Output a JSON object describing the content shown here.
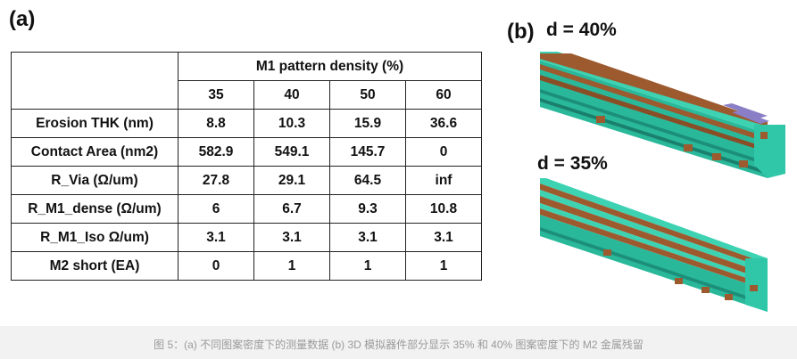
{
  "panel_a_label": "(a)",
  "panel_b_label": "(b)",
  "table": {
    "group_header": "M1 pattern density (%)",
    "densities": [
      "35",
      "40",
      "50",
      "60"
    ],
    "rows": [
      {
        "label": "Erosion THK (nm)",
        "values": [
          "8.8",
          "10.3",
          "15.9",
          "36.6"
        ]
      },
      {
        "label": "Contact Area (nm2)",
        "values": [
          "582.9",
          "549.1",
          "145.7",
          "0"
        ]
      },
      {
        "label": "R_Via (Ω/um)",
        "values": [
          "27.8",
          "29.1",
          "64.5",
          "inf"
        ]
      },
      {
        "label": "R_M1_dense (Ω/um)",
        "values": [
          "6",
          "6.7",
          "9.3",
          "10.8"
        ]
      },
      {
        "label": "R_M1_Iso Ω/um)",
        "values": [
          "3.1",
          "3.1",
          "3.1",
          "3.1"
        ]
      },
      {
        "label": "M2 short (EA)",
        "values": [
          "0",
          "1",
          "1",
          "1"
        ]
      }
    ]
  },
  "render_top_label": "d = 40%",
  "render_bottom_label": "d = 35%",
  "caption": "图 5：(a) 不同图案密度下的测量数据 (b) 3D 模拟器件部分显示 35% 和 40% 图案密度下的 M2 金属残留",
  "colors": {
    "teal": "#2fc7a8",
    "teal_dark": "#1c8f7a",
    "copper": "#9c5a2e",
    "purple": "#8a7fc6"
  }
}
